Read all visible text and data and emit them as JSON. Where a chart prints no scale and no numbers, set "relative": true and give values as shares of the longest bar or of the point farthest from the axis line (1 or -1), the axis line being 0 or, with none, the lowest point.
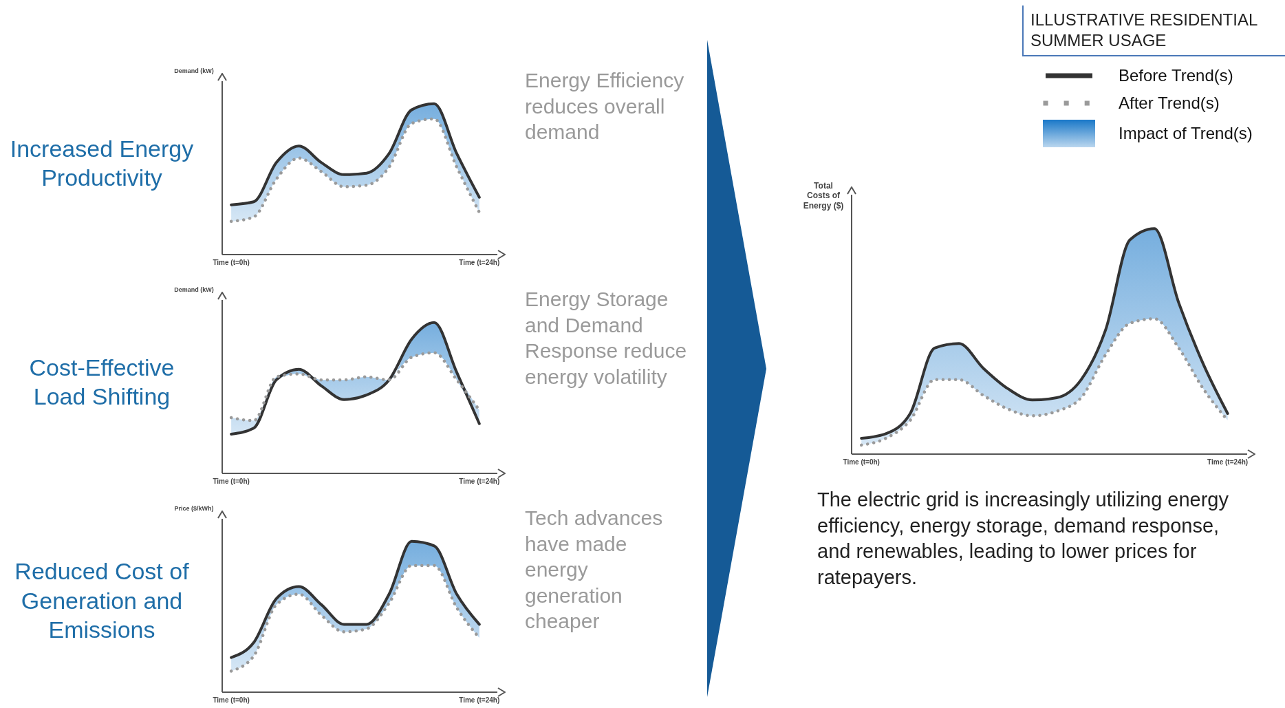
{
  "chart_data": [
    {
      "type": "line",
      "title": "Increased Energy Productivity",
      "ylabel": "Demand (kW)",
      "relative": true,
      "marker": "none",
      "annotations": [
        "Energy Efficiency reduces overall demand"
      ],
      "categories": [
        "Time (t=0h)",
        null,
        null,
        null,
        null,
        null,
        null,
        null,
        null,
        null,
        null,
        "Time (t=24h)"
      ],
      "series": [
        {
          "color": "#333333",
          "line_style": "solid",
          "values": [
            0.33,
            0.35,
            0.61,
            0.72,
            0.61,
            0.53,
            0.54,
            0.67,
            0.96,
            1,
            0.67,
            0.38
          ],
          "lower": [
            0.22,
            0.25,
            0.5,
            0.64,
            0.55,
            0.45,
            0.46,
            0.58,
            0.87,
            0.9,
            0.58,
            0.28
          ],
          "upper": [
            0.33,
            0.35,
            0.61,
            0.72,
            0.61,
            0.53,
            0.54,
            0.67,
            0.96,
            1,
            0.67,
            0.38
          ]
        },
        {
          "color": "#9a9a9a",
          "line_style": "dotted",
          "values": [
            0.22,
            0.25,
            0.5,
            0.64,
            0.55,
            0.45,
            0.46,
            0.58,
            0.87,
            0.9,
            0.58,
            0.28
          ]
        }
      ]
    },
    {
      "type": "line",
      "title": "Cost-Effective Load Shifting",
      "ylabel": "Demand (kW)",
      "relative": true,
      "marker": "none",
      "annotations": [
        "Energy Storage and Demand Response reduce energy volatility"
      ],
      "categories": [
        "Time (t=0h)",
        null,
        null,
        null,
        null,
        null,
        null,
        null,
        null,
        null,
        null,
        "Time (t=24h)"
      ],
      "series": [
        {
          "color": "#333333",
          "line_style": "solid",
          "values": [
            0.26,
            0.3,
            0.62,
            0.69,
            0.58,
            0.49,
            0.52,
            0.62,
            0.89,
            1,
            0.67,
            0.33
          ],
          "lower": [
            0.26,
            0.3,
            0.62,
            0.66,
            0.58,
            0.49,
            0.52,
            0.62,
            0.77,
            0.8,
            0.62,
            0.33
          ],
          "upper": [
            0.37,
            0.35,
            0.64,
            0.69,
            0.62,
            0.62,
            0.64,
            0.62,
            0.89,
            1,
            0.67,
            0.42
          ]
        },
        {
          "color": "#9a9a9a",
          "line_style": "dotted",
          "values": [
            0.37,
            0.35,
            0.64,
            0.66,
            0.62,
            0.62,
            0.64,
            0.62,
            0.77,
            0.8,
            0.62,
            0.42
          ]
        }
      ]
    },
    {
      "type": "line",
      "title": "Reduced Cost of Generation and Emissions",
      "ylabel": "Price ($/kWh)",
      "relative": true,
      "marker": "none",
      "annotations": [
        "Tech advances have made energy generation cheaper"
      ],
      "categories": [
        "Time (t=0h)",
        null,
        null,
        null,
        null,
        null,
        null,
        null,
        null,
        null,
        null,
        "Time (t=24h)"
      ],
      "series": [
        {
          "color": "#333333",
          "line_style": "solid",
          "values": [
            0.23,
            0.33,
            0.62,
            0.7,
            0.58,
            0.45,
            0.45,
            0.65,
            1,
            0.97,
            0.65,
            0.45
          ],
          "lower": [
            0.14,
            0.24,
            0.58,
            0.65,
            0.51,
            0.4,
            0.42,
            0.59,
            0.84,
            0.84,
            0.56,
            0.36
          ],
          "upper": [
            0.23,
            0.33,
            0.62,
            0.7,
            0.58,
            0.45,
            0.45,
            0.65,
            1,
            0.97,
            0.65,
            0.45
          ]
        },
        {
          "color": "#9a9a9a",
          "line_style": "dotted",
          "values": [
            0.14,
            0.24,
            0.58,
            0.65,
            0.51,
            0.4,
            0.42,
            0.59,
            0.84,
            0.84,
            0.56,
            0.36
          ]
        }
      ]
    },
    {
      "type": "line",
      "ylabel": "Total Costs of Energy ($)",
      "relative": true,
      "marker": "none",
      "legend": "top right",
      "legend_title": "ILLUSTRATIVE RESIDENTIAL SUMMER USAGE",
      "annotations": [
        "The electric grid is increasingly utilizing energy efficiency, energy storage, demand response, and renewables, leading to lower prices for ratepayers."
      ],
      "categories": [
        "Time (t=0h)",
        null,
        null,
        null,
        null,
        null,
        null,
        null,
        null,
        null,
        null,
        null,
        null,
        null,
        null,
        "Time (t=24h)"
      ],
      "series": [
        {
          "name": "Before Trend(s)",
          "color": "#333333",
          "line_style": "solid",
          "values": [
            0.07,
            0.09,
            0.18,
            0.47,
            0.49,
            0.38,
            0.29,
            0.24,
            0.25,
            0.33,
            0.55,
            0.95,
            1,
            0.67,
            0.4,
            0.18
          ],
          "lower": [
            0.04,
            0.07,
            0.15,
            0.33,
            0.33,
            0.26,
            0.2,
            0.17,
            0.19,
            0.25,
            0.44,
            0.58,
            0.6,
            0.47,
            0.29,
            0.15
          ],
          "upper": [
            0.07,
            0.09,
            0.18,
            0.47,
            0.49,
            0.38,
            0.29,
            0.24,
            0.25,
            0.33,
            0.55,
            0.95,
            1,
            0.67,
            0.4,
            0.18
          ]
        },
        {
          "name": "After Trend(s)",
          "color": "#9a9a9a",
          "line_style": "dotted",
          "values": [
            0.04,
            0.07,
            0.15,
            0.33,
            0.33,
            0.26,
            0.2,
            0.17,
            0.19,
            0.25,
            0.44,
            0.58,
            0.6,
            0.47,
            0.29,
            0.15
          ]
        },
        {
          "name": "Impact of Trend(s)",
          "type": "area",
          "color": "#1a78c8",
          "values": [
            null,
            null,
            null,
            null,
            null,
            null,
            null,
            null,
            null,
            null,
            null,
            null,
            null,
            null,
            null,
            null
          ]
        }
      ]
    }
  ]
}
